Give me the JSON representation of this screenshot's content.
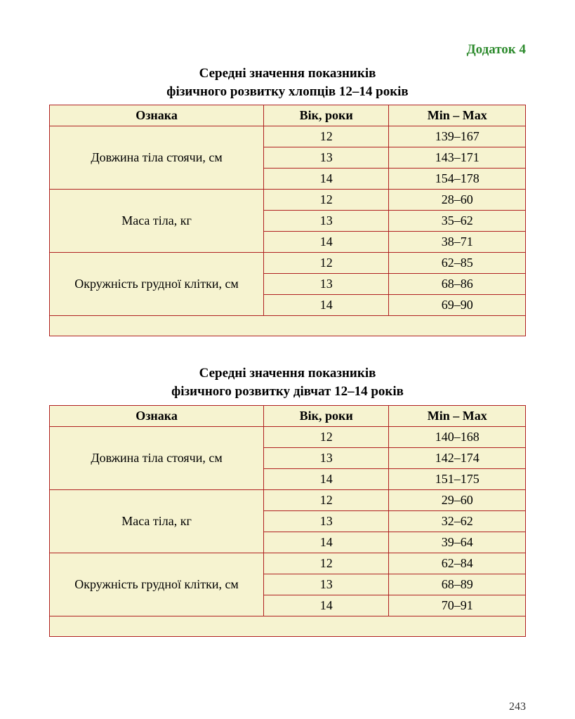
{
  "appendix_label": "Додаток 4",
  "appendix_color": "#2e8b2e",
  "page_number": "243",
  "colors": {
    "table_border": "#b02020",
    "table_bg": "#f6f3d0",
    "text": "#000000"
  },
  "tables": [
    {
      "title_line1": "Середні значення показників",
      "title_line2": "фізичного розвитку хлопців 12–14 років",
      "columns": [
        "Ознака",
        "Вік, роки",
        "Min – Max"
      ],
      "groups": [
        {
          "attribute": "Довжина тіла стоячи, см",
          "rows": [
            {
              "age": "12",
              "range": "139–167"
            },
            {
              "age": "13",
              "range": "143–171"
            },
            {
              "age": "14",
              "range": "154–178"
            }
          ]
        },
        {
          "attribute": "Маса тіла, кг",
          "rows": [
            {
              "age": "12",
              "range": "28–60"
            },
            {
              "age": "13",
              "range": "35–62"
            },
            {
              "age": "14",
              "range": "38–71"
            }
          ]
        },
        {
          "attribute": "Окружність грудної клітки, см",
          "rows": [
            {
              "age": "12",
              "range": "62–85"
            },
            {
              "age": "13",
              "range": "68–86"
            },
            {
              "age": "14",
              "range": "69–90"
            }
          ]
        }
      ]
    },
    {
      "title_line1": "Середні значення показників",
      "title_line2": "фізичного розвитку дівчат 12–14 років",
      "columns": [
        "Ознака",
        "Вік, роки",
        "Min – Max"
      ],
      "groups": [
        {
          "attribute": "Довжина тіла стоячи, см",
          "rows": [
            {
              "age": "12",
              "range": "140–168"
            },
            {
              "age": "13",
              "range": "142–174"
            },
            {
              "age": "14",
              "range": "151–175"
            }
          ]
        },
        {
          "attribute": "Маса тіла, кг",
          "rows": [
            {
              "age": "12",
              "range": "29–60"
            },
            {
              "age": "13",
              "range": "32–62"
            },
            {
              "age": "14",
              "range": "39–64"
            }
          ]
        },
        {
          "attribute": "Окружність грудної клітки, см",
          "rows": [
            {
              "age": "12",
              "range": "62–84"
            },
            {
              "age": "13",
              "range": "68–89"
            },
            {
              "age": "14",
              "range": "70–91"
            }
          ]
        }
      ]
    }
  ]
}
